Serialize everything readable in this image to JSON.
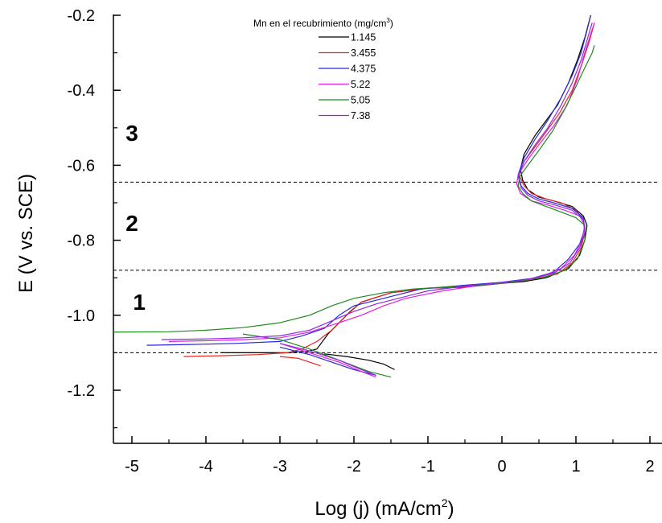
{
  "chart_data": {
    "type": "line",
    "xlabel": "Log (j) (mA/cm",
    "xlabel_sup": "2",
    "xlabel_end": ")",
    "ylabel": "E (V vs. SCE)",
    "xlim": [
      -5.2,
      2
    ],
    "ylim": [
      -1.33,
      -0.2
    ],
    "x_ticks": [
      -5,
      -4,
      -3,
      -2,
      -1,
      0,
      1,
      2
    ],
    "x_tick_labels": [
      "-5",
      "-4",
      "-3",
      "-2",
      "-1",
      "0",
      "1",
      "2"
    ],
    "y_ticks": [
      -0.2,
      -0.4,
      -0.6,
      -0.8,
      -1.0,
      -1.2
    ],
    "y_tick_labels": [
      "-0.2",
      "-0.4",
      "-0.6",
      "-0.8",
      "-1.0",
      "-1.2"
    ],
    "grid": false,
    "legend": {
      "title": "Mn en el recubrimiento (mg/cm",
      "title_sup": "3",
      "title_end": ")",
      "placement": "top-center"
    },
    "reference_lines": [
      -0.645,
      -0.88,
      -1.1
    ],
    "region_labels": [
      {
        "text": "3",
        "x": -5.0,
        "y": -0.535
      },
      {
        "text": "2",
        "x": -5.0,
        "y": -0.775
      },
      {
        "text": "1",
        "x": -4.9,
        "y": -0.985
      }
    ],
    "series": [
      {
        "name": "1.145",
        "color": "#000000",
        "points": [
          [
            -3.8,
            -1.1
          ],
          [
            -3.3,
            -1.1
          ],
          [
            -2.9,
            -1.1
          ],
          [
            -2.6,
            -1.095
          ],
          [
            -2.5,
            -1.09
          ],
          [
            -2.35,
            -1.05
          ],
          [
            -2.2,
            -1.02
          ],
          [
            -2.05,
            -0.99
          ],
          [
            -1.9,
            -0.965
          ],
          [
            -1.5,
            -0.94
          ],
          [
            -1.0,
            -0.928
          ],
          [
            -0.5,
            -0.925
          ],
          [
            0.0,
            -0.915
          ],
          [
            0.3,
            -0.91
          ],
          [
            0.6,
            -0.9
          ],
          [
            0.9,
            -0.875
          ],
          [
            1.05,
            -0.84
          ],
          [
            1.12,
            -0.8
          ],
          [
            1.15,
            -0.76
          ],
          [
            1.1,
            -0.735
          ],
          [
            0.95,
            -0.71
          ],
          [
            0.7,
            -0.695
          ],
          [
            0.5,
            -0.685
          ],
          [
            0.35,
            -0.665
          ],
          [
            0.28,
            -0.64
          ],
          [
            0.25,
            -0.61
          ],
          [
            0.3,
            -0.57
          ],
          [
            0.45,
            -0.52
          ],
          [
            0.6,
            -0.48
          ],
          [
            0.75,
            -0.44
          ],
          [
            0.9,
            -0.38
          ],
          [
            1.02,
            -0.32
          ],
          [
            1.12,
            -0.26
          ],
          [
            1.2,
            -0.2
          ]
        ]
      },
      {
        "name": "1.145",
        "color": "#000000",
        "points": [
          [
            -2.4,
            -1.103
          ],
          [
            -2.1,
            -1.11
          ],
          [
            -1.8,
            -1.12
          ],
          [
            -1.6,
            -1.13
          ],
          [
            -1.45,
            -1.145
          ]
        ]
      },
      {
        "name": "3.455",
        "color": "#e8261e",
        "points": [
          [
            -4.3,
            -1.11
          ],
          [
            -3.8,
            -1.108
          ],
          [
            -3.3,
            -1.105
          ],
          [
            -2.9,
            -1.1
          ],
          [
            -2.7,
            -1.09
          ],
          [
            -2.5,
            -1.07
          ],
          [
            -2.3,
            -1.04
          ],
          [
            -2.1,
            -1.0
          ],
          [
            -1.9,
            -0.965
          ],
          [
            -1.5,
            -0.94
          ],
          [
            -1.0,
            -0.928
          ],
          [
            -0.5,
            -0.924
          ],
          [
            0.0,
            -0.915
          ],
          [
            0.4,
            -0.905
          ],
          [
            0.75,
            -0.89
          ],
          [
            0.95,
            -0.86
          ],
          [
            1.07,
            -0.82
          ],
          [
            1.12,
            -0.78
          ],
          [
            1.1,
            -0.745
          ],
          [
            1.0,
            -0.72
          ],
          [
            0.8,
            -0.7
          ],
          [
            0.6,
            -0.69
          ],
          [
            0.4,
            -0.675
          ],
          [
            0.3,
            -0.655
          ],
          [
            0.23,
            -0.625
          ],
          [
            0.3,
            -0.59
          ],
          [
            0.45,
            -0.55
          ],
          [
            0.6,
            -0.51
          ],
          [
            0.78,
            -0.46
          ],
          [
            0.95,
            -0.4
          ],
          [
            1.08,
            -0.33
          ],
          [
            1.18,
            -0.27
          ],
          [
            1.25,
            -0.22
          ]
        ]
      },
      {
        "name": "3.455",
        "color": "#e8261e",
        "points": [
          [
            -3.0,
            -1.11
          ],
          [
            -2.75,
            -1.115
          ],
          [
            -2.6,
            -1.125
          ],
          [
            -2.45,
            -1.135
          ]
        ]
      },
      {
        "name": "4.375",
        "color": "#2828e0",
        "points": [
          [
            -4.8,
            -1.08
          ],
          [
            -4.2,
            -1.078
          ],
          [
            -3.6,
            -1.075
          ],
          [
            -3.0,
            -1.07
          ],
          [
            -2.7,
            -1.055
          ],
          [
            -2.4,
            -1.035
          ],
          [
            -2.2,
            -1.0
          ],
          [
            -2.0,
            -0.975
          ],
          [
            -1.7,
            -0.96
          ],
          [
            -1.4,
            -0.945
          ],
          [
            -1.1,
            -0.93
          ],
          [
            -0.5,
            -0.92
          ],
          [
            0.0,
            -0.912
          ],
          [
            0.4,
            -0.902
          ],
          [
            0.7,
            -0.885
          ],
          [
            0.9,
            -0.85
          ],
          [
            1.05,
            -0.81
          ],
          [
            1.12,
            -0.77
          ],
          [
            1.1,
            -0.74
          ],
          [
            0.95,
            -0.715
          ],
          [
            0.7,
            -0.7
          ],
          [
            0.5,
            -0.69
          ],
          [
            0.35,
            -0.675
          ],
          [
            0.26,
            -0.655
          ],
          [
            0.22,
            -0.625
          ],
          [
            0.3,
            -0.58
          ],
          [
            0.45,
            -0.53
          ],
          [
            0.62,
            -0.48
          ],
          [
            0.8,
            -0.42
          ],
          [
            0.95,
            -0.36
          ],
          [
            1.07,
            -0.3
          ],
          [
            1.15,
            -0.24
          ],
          [
            1.2,
            -0.2
          ]
        ]
      },
      {
        "name": "4.375",
        "color": "#2828e0",
        "points": [
          [
            -3.0,
            -1.085
          ],
          [
            -2.6,
            -1.105
          ],
          [
            -2.3,
            -1.125
          ],
          [
            -2.0,
            -1.145
          ],
          [
            -1.7,
            -1.16
          ]
        ]
      },
      {
        "name": "5.22",
        "color": "#e020e0",
        "points": [
          [
            -4.5,
            -1.07
          ],
          [
            -4.0,
            -1.068
          ],
          [
            -3.5,
            -1.065
          ],
          [
            -3.0,
            -1.06
          ],
          [
            -2.6,
            -1.045
          ],
          [
            -2.2,
            -1.02
          ],
          [
            -1.9,
            -1.0
          ],
          [
            -1.6,
            -0.975
          ],
          [
            -1.3,
            -0.955
          ],
          [
            -0.8,
            -0.935
          ],
          [
            -0.3,
            -0.92
          ],
          [
            0.2,
            -0.91
          ],
          [
            0.55,
            -0.895
          ],
          [
            0.8,
            -0.875
          ],
          [
            0.98,
            -0.84
          ],
          [
            1.08,
            -0.8
          ],
          [
            1.12,
            -0.76
          ],
          [
            1.05,
            -0.735
          ],
          [
            0.85,
            -0.72
          ],
          [
            0.6,
            -0.705
          ],
          [
            0.4,
            -0.695
          ],
          [
            0.25,
            -0.675
          ],
          [
            0.2,
            -0.65
          ],
          [
            0.22,
            -0.625
          ],
          [
            0.35,
            -0.585
          ],
          [
            0.5,
            -0.545
          ],
          [
            0.7,
            -0.495
          ],
          [
            0.88,
            -0.44
          ],
          [
            1.02,
            -0.37
          ],
          [
            1.12,
            -0.3
          ],
          [
            1.2,
            -0.25
          ],
          [
            1.25,
            -0.22
          ]
        ]
      },
      {
        "name": "5.22",
        "color": "#e020e0",
        "points": [
          [
            -3.0,
            -1.075
          ],
          [
            -2.6,
            -1.1
          ],
          [
            -2.2,
            -1.125
          ],
          [
            -1.9,
            -1.15
          ],
          [
            -1.7,
            -1.165
          ]
        ]
      },
      {
        "name": "5.05",
        "color": "#1e8a1e",
        "points": [
          [
            -5.3,
            -1.045
          ],
          [
            -4.5,
            -1.044
          ],
          [
            -4.0,
            -1.04
          ],
          [
            -3.5,
            -1.033
          ],
          [
            -3.0,
            -1.02
          ],
          [
            -2.6,
            -1.0
          ],
          [
            -2.3,
            -0.975
          ],
          [
            -2.0,
            -0.955
          ],
          [
            -1.6,
            -0.94
          ],
          [
            -1.2,
            -0.93
          ],
          [
            -0.8,
            -0.925
          ],
          [
            -0.3,
            -0.92
          ],
          [
            0.2,
            -0.91
          ],
          [
            0.55,
            -0.9
          ],
          [
            0.85,
            -0.88
          ],
          [
            1.02,
            -0.85
          ],
          [
            1.12,
            -0.8
          ],
          [
            1.12,
            -0.76
          ],
          [
            1.0,
            -0.74
          ],
          [
            0.8,
            -0.725
          ],
          [
            0.6,
            -0.71
          ],
          [
            0.4,
            -0.695
          ],
          [
            0.28,
            -0.675
          ],
          [
            0.22,
            -0.655
          ],
          [
            0.24,
            -0.63
          ],
          [
            0.35,
            -0.6
          ],
          [
            0.5,
            -0.56
          ],
          [
            0.68,
            -0.51
          ],
          [
            0.85,
            -0.45
          ],
          [
            1.0,
            -0.39
          ],
          [
            1.12,
            -0.34
          ],
          [
            1.22,
            -0.3
          ],
          [
            1.25,
            -0.28
          ]
        ]
      },
      {
        "name": "5.05",
        "color": "#1e8a1e",
        "points": [
          [
            -3.5,
            -1.05
          ],
          [
            -3.0,
            -1.065
          ],
          [
            -2.6,
            -1.09
          ],
          [
            -2.2,
            -1.12
          ],
          [
            -1.8,
            -1.15
          ],
          [
            -1.5,
            -1.165
          ]
        ]
      },
      {
        "name": "7.38",
        "color": "#8a2be2",
        "points": [
          [
            -4.6,
            -1.065
          ],
          [
            -4.0,
            -1.063
          ],
          [
            -3.5,
            -1.06
          ],
          [
            -3.0,
            -1.055
          ],
          [
            -2.6,
            -1.04
          ],
          [
            -2.3,
            -1.015
          ],
          [
            -2.0,
            -0.99
          ],
          [
            -1.7,
            -0.97
          ],
          [
            -1.4,
            -0.955
          ],
          [
            -1.0,
            -0.935
          ],
          [
            -0.5,
            -0.922
          ],
          [
            0.0,
            -0.913
          ],
          [
            0.4,
            -0.903
          ],
          [
            0.7,
            -0.888
          ],
          [
            0.92,
            -0.86
          ],
          [
            1.05,
            -0.82
          ],
          [
            1.12,
            -0.78
          ],
          [
            1.1,
            -0.745
          ],
          [
            0.95,
            -0.72
          ],
          [
            0.7,
            -0.705
          ],
          [
            0.5,
            -0.695
          ],
          [
            0.35,
            -0.68
          ],
          [
            0.26,
            -0.66
          ],
          [
            0.22,
            -0.63
          ],
          [
            0.3,
            -0.59
          ],
          [
            0.45,
            -0.545
          ],
          [
            0.62,
            -0.5
          ],
          [
            0.8,
            -0.44
          ],
          [
            0.95,
            -0.38
          ],
          [
            1.07,
            -0.32
          ],
          [
            1.16,
            -0.26
          ],
          [
            1.22,
            -0.22
          ]
        ]
      },
      {
        "name": "7.38",
        "color": "#8a2be2",
        "points": [
          [
            -3.0,
            -1.075
          ],
          [
            -2.6,
            -1.095
          ],
          [
            -2.2,
            -1.12
          ],
          [
            -1.9,
            -1.145
          ],
          [
            -1.7,
            -1.16
          ]
        ]
      }
    ],
    "legend_entries": [
      {
        "name": "1.145",
        "color": "#000000"
      },
      {
        "name": "3.455",
        "color": "#e8261e"
      },
      {
        "name": "4.375",
        "color": "#2828e0"
      },
      {
        "name": "5.22",
        "color": "#e020e0"
      },
      {
        "name": "5.05",
        "color": "#1e8a1e"
      },
      {
        "name": "7.38",
        "color": "#8a2be2"
      }
    ]
  }
}
